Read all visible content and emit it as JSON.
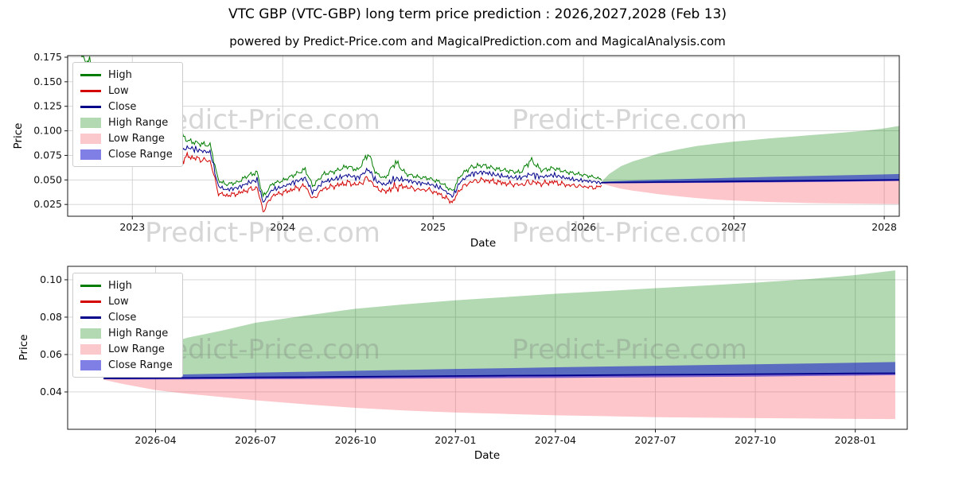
{
  "title": "VTC GBP (VTC-GBP) long term price prediction : 2026,2027,2028 (Feb 13)",
  "subtitle": "powered by Predict-Price.com and MagicalPrediction.com and MagicalAnalysis.com",
  "watermark": "Predict-Price.com",
  "colors": {
    "high_line": "#007d00",
    "low_line": "#d40000",
    "close_line": "#00008b",
    "high_range_fill": "rgba(0,128,0,0.30)",
    "low_range_fill": "rgba(244,67,80,0.30)",
    "close_range_fill": "rgba(0,0,205,0.50)",
    "grid": "#d0d0d0",
    "axis": "#1a1a1a",
    "text": "#111111"
  },
  "legend": [
    {
      "label": "High",
      "swatch": "line",
      "color": "#007d00"
    },
    {
      "label": "Low",
      "swatch": "line",
      "color": "#d40000"
    },
    {
      "label": "Close",
      "swatch": "line",
      "color": "#00008b"
    },
    {
      "label": "High Range",
      "swatch": "patch",
      "color": "#b3d9b3"
    },
    {
      "label": "Low Range",
      "swatch": "patch",
      "color": "#fbc9cc"
    },
    {
      "label": "Close Range",
      "swatch": "patch",
      "color": "#7f7fe6"
    }
  ],
  "chart_data": [
    {
      "type": "line",
      "name": "full-history-with-prediction",
      "xlabel": "Date",
      "ylabel": "Price",
      "xlim": [
        2022.57,
        2028.1
      ],
      "ylim": [
        0.013,
        0.1766
      ],
      "grid": true,
      "legend_position": "upper left",
      "xticks": [
        {
          "v": 2023,
          "label": "2023"
        },
        {
          "v": 2024,
          "label": "2024"
        },
        {
          "v": 2025,
          "label": "2025"
        },
        {
          "v": 2026,
          "label": "2026"
        },
        {
          "v": 2027,
          "label": "2027"
        },
        {
          "v": 2028,
          "label": "2028"
        }
      ],
      "yticks": [
        {
          "v": 0.025,
          "label": "0.025"
        },
        {
          "v": 0.05,
          "label": "0.050"
        },
        {
          "v": 0.075,
          "label": "0.075"
        },
        {
          "v": 0.1,
          "label": "0.100"
        },
        {
          "v": 0.125,
          "label": "0.125"
        },
        {
          "v": 0.15,
          "label": "0.150"
        },
        {
          "v": 0.175,
          "label": "0.175"
        }
      ],
      "historical": {
        "t": [
          2022.66,
          2022.72,
          2022.79,
          2022.87,
          2022.95,
          2023.02,
          2023.08,
          2023.15,
          2023.22,
          2023.3,
          2023.37,
          2023.45,
          2023.52,
          2023.57,
          2023.62,
          2023.7,
          2023.77,
          2023.83,
          2023.87,
          2023.93,
          2024.0,
          2024.08,
          2024.15,
          2024.2,
          2024.27,
          2024.35,
          2024.43,
          2024.5,
          2024.57,
          2024.62,
          2024.68,
          2024.75,
          2024.82,
          2024.9,
          2024.97,
          2025.05,
          2025.13,
          2025.18,
          2025.25,
          2025.33,
          2025.42,
          2025.5,
          2025.58,
          2025.65,
          2025.72,
          2025.8,
          2025.88,
          2025.95,
          2026.02,
          2026.08,
          2026.12
        ],
        "high": [
          0.174,
          0.168,
          0.145,
          0.131,
          0.126,
          0.135,
          0.154,
          0.131,
          0.1,
          0.101,
          0.091,
          0.088,
          0.086,
          0.051,
          0.046,
          0.048,
          0.055,
          0.058,
          0.033,
          0.046,
          0.049,
          0.055,
          0.06,
          0.043,
          0.055,
          0.058,
          0.063,
          0.059,
          0.076,
          0.056,
          0.051,
          0.068,
          0.056,
          0.053,
          0.052,
          0.048,
          0.039,
          0.055,
          0.064,
          0.066,
          0.062,
          0.06,
          0.058,
          0.071,
          0.06,
          0.062,
          0.058,
          0.056,
          0.054,
          0.052,
          0.05
        ],
        "low": [
          0.14,
          0.133,
          0.12,
          0.109,
          0.105,
          0.113,
          0.13,
          0.108,
          0.08,
          0.069,
          0.074,
          0.071,
          0.069,
          0.037,
          0.034,
          0.036,
          0.04,
          0.042,
          0.018,
          0.034,
          0.037,
          0.041,
          0.044,
          0.03,
          0.041,
          0.044,
          0.047,
          0.045,
          0.052,
          0.042,
          0.038,
          0.043,
          0.043,
          0.04,
          0.04,
          0.035,
          0.027,
          0.041,
          0.048,
          0.05,
          0.048,
          0.046,
          0.045,
          0.048,
          0.046,
          0.048,
          0.045,
          0.044,
          0.043,
          0.042,
          0.044
        ],
        "close": [
          0.158,
          0.15,
          0.132,
          0.12,
          0.115,
          0.124,
          0.143,
          0.12,
          0.09,
          0.078,
          0.083,
          0.08,
          0.078,
          0.044,
          0.04,
          0.042,
          0.047,
          0.05,
          0.027,
          0.04,
          0.043,
          0.048,
          0.052,
          0.037,
          0.048,
          0.051,
          0.055,
          0.052,
          0.061,
          0.049,
          0.045,
          0.051,
          0.05,
          0.047,
          0.046,
          0.042,
          0.033,
          0.048,
          0.056,
          0.058,
          0.055,
          0.053,
          0.052,
          0.056,
          0.053,
          0.055,
          0.052,
          0.05,
          0.049,
          0.048,
          0.047
        ]
      },
      "forecast": {
        "t": [
          2026.12,
          2026.17,
          2026.25,
          2026.33,
          2026.42,
          2026.5,
          2026.63,
          2026.75,
          2026.88,
          2027.0,
          2027.13,
          2027.25,
          2027.38,
          2027.5,
          2027.63,
          2027.75,
          2027.88,
          2028.0,
          2028.1
        ],
        "high_range_top": [
          0.048,
          0.056,
          0.064,
          0.069,
          0.073,
          0.077,
          0.081,
          0.0845,
          0.087,
          0.089,
          0.0908,
          0.0925,
          0.094,
          0.0955,
          0.097,
          0.0985,
          0.1003,
          0.1025,
          0.105
        ],
        "range_mid": [
          0.0472,
          0.0473,
          0.0474,
          0.0475,
          0.0476,
          0.0478,
          0.0479,
          0.0481,
          0.0483,
          0.0485,
          0.0487,
          0.0488,
          0.049,
          0.0492,
          0.0493,
          0.0495,
          0.0497,
          0.0499,
          0.05
        ],
        "low_range_bottom": [
          0.0465,
          0.0442,
          0.041,
          0.039,
          0.0372,
          0.0355,
          0.0333,
          0.0315,
          0.03,
          0.029,
          0.0282,
          0.0275,
          0.027,
          0.0265,
          0.0262,
          0.026,
          0.0258,
          0.0256,
          0.0255
        ],
        "close_range_top": [
          0.048,
          0.0484,
          0.0489,
          0.0494,
          0.0498,
          0.0503,
          0.0508,
          0.0513,
          0.0518,
          0.0523,
          0.0527,
          0.0532,
          0.0536,
          0.054,
          0.0544,
          0.0548,
          0.0552,
          0.0556,
          0.056
        ],
        "close_range_bottom": [
          0.0468,
          0.0467,
          0.0467,
          0.0467,
          0.0468,
          0.0468,
          0.0469,
          0.047,
          0.0471,
          0.0472,
          0.0474,
          0.0475,
          0.0477,
          0.0478,
          0.048,
          0.0482,
          0.0485,
          0.0487,
          0.049
        ],
        "close_pred": [
          0.0472,
          0.0473,
          0.0474,
          0.0475,
          0.0476,
          0.0478,
          0.0479,
          0.0481,
          0.0483,
          0.0485,
          0.0487,
          0.0488,
          0.049,
          0.0492,
          0.0493,
          0.0495,
          0.0497,
          0.0499,
          0.05
        ]
      }
    },
    {
      "type": "line",
      "name": "prediction-zoom",
      "xlabel": "Date",
      "ylabel": "Price",
      "xlim": [
        2026.03,
        2028.13
      ],
      "ylim": [
        0.02,
        0.1072
      ],
      "grid": true,
      "legend_position": "upper left",
      "xticks": [
        {
          "v": 2026.25,
          "label": "2026-04"
        },
        {
          "v": 2026.5,
          "label": "2026-07"
        },
        {
          "v": 2026.75,
          "label": "2026-10"
        },
        {
          "v": 2027.0,
          "label": "2027-01"
        },
        {
          "v": 2027.25,
          "label": "2027-04"
        },
        {
          "v": 2027.5,
          "label": "2027-07"
        },
        {
          "v": 2027.75,
          "label": "2027-10"
        },
        {
          "v": 2028.0,
          "label": "2028-01"
        }
      ],
      "yticks": [
        {
          "v": 0.04,
          "label": "0.04"
        },
        {
          "v": 0.06,
          "label": "0.06"
        },
        {
          "v": 0.08,
          "label": "0.08"
        },
        {
          "v": 0.1,
          "label": "0.10"
        }
      ],
      "forecast": {
        "t": [
          2026.12,
          2026.17,
          2026.25,
          2026.33,
          2026.42,
          2026.5,
          2026.63,
          2026.75,
          2026.88,
          2027.0,
          2027.13,
          2027.25,
          2027.38,
          2027.5,
          2027.63,
          2027.75,
          2027.88,
          2028.0,
          2028.1
        ],
        "high_range_top": [
          0.048,
          0.056,
          0.064,
          0.069,
          0.073,
          0.077,
          0.081,
          0.0845,
          0.087,
          0.089,
          0.0908,
          0.0925,
          0.094,
          0.0955,
          0.097,
          0.0985,
          0.1003,
          0.1025,
          0.105
        ],
        "range_mid": [
          0.0472,
          0.0473,
          0.0474,
          0.0475,
          0.0476,
          0.0478,
          0.0479,
          0.0481,
          0.0483,
          0.0485,
          0.0487,
          0.0488,
          0.049,
          0.0492,
          0.0493,
          0.0495,
          0.0497,
          0.0499,
          0.05
        ],
        "low_range_bottom": [
          0.0465,
          0.0442,
          0.041,
          0.039,
          0.0372,
          0.0355,
          0.0333,
          0.0315,
          0.03,
          0.029,
          0.0282,
          0.0275,
          0.027,
          0.0265,
          0.0262,
          0.026,
          0.0258,
          0.0256,
          0.0255
        ],
        "close_range_top": [
          0.048,
          0.0484,
          0.0489,
          0.0494,
          0.0498,
          0.0503,
          0.0508,
          0.0513,
          0.0518,
          0.0523,
          0.0527,
          0.0532,
          0.0536,
          0.054,
          0.0544,
          0.0548,
          0.0552,
          0.0556,
          0.056
        ],
        "close_range_bottom": [
          0.0468,
          0.0467,
          0.0467,
          0.0467,
          0.0468,
          0.0468,
          0.0469,
          0.047,
          0.0471,
          0.0472,
          0.0474,
          0.0475,
          0.0477,
          0.0478,
          0.048,
          0.0482,
          0.0485,
          0.0487,
          0.049
        ],
        "close_pred": [
          0.0472,
          0.0473,
          0.0474,
          0.0475,
          0.0476,
          0.0478,
          0.0479,
          0.0481,
          0.0483,
          0.0485,
          0.0487,
          0.0488,
          0.049,
          0.0492,
          0.0493,
          0.0495,
          0.0497,
          0.0499,
          0.05
        ]
      }
    }
  ]
}
